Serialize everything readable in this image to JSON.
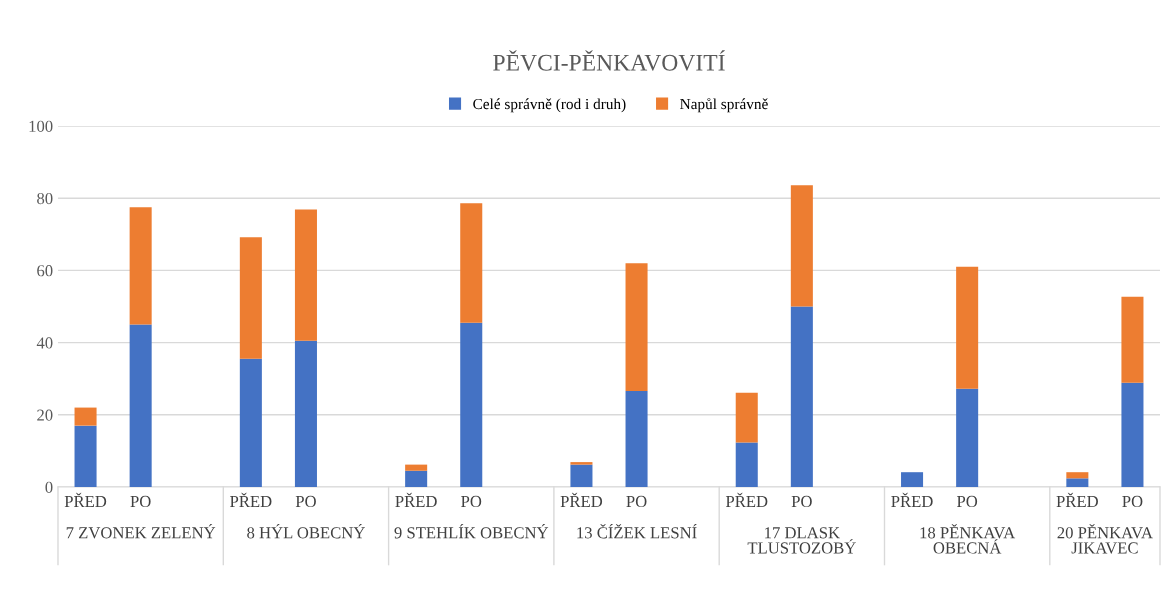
{
  "chart_data": {
    "type": "bar",
    "title": "PĚVCI-PĚNKAVOVITÍ",
    "stacked": true,
    "categories": [
      "PŘED",
      "PO",
      null,
      "PŘED",
      "PO",
      null,
      "PŘED",
      "PO",
      null,
      "PŘED",
      "PO",
      null,
      "PŘED",
      "PO",
      null,
      "PŘED",
      "PO",
      null,
      "PŘED",
      "PO"
    ],
    "series": [
      {
        "name": "Celé správně (rod i druh)",
        "color": "#4472c4",
        "values": [
          17,
          45,
          null,
          35.5,
          40.5,
          null,
          4.5,
          45.5,
          null,
          6.2,
          26.6,
          null,
          12.3,
          50,
          null,
          4.1,
          27.2,
          null,
          2.4,
          28.9
        ]
      },
      {
        "name": "Napůl správně",
        "color": "#ed7d31",
        "values": [
          5,
          32.5,
          null,
          33.7,
          36.4,
          null,
          1.7,
          33.1,
          null,
          0.7,
          35.4,
          null,
          13.8,
          33.6,
          null,
          0,
          33.8,
          null,
          1.7,
          23.8
        ]
      }
    ],
    "annotations": [
      "7 ZVONEK ZELENÝ",
      "8 HÝL OBECNÝ",
      "9 STEHLÍK OBECNÝ",
      "13 ČÍŽEK LESNÍ",
      "17 DLASK\nTLUSTOZOBÝ",
      "18 PĚNKAVA\nOBECNÁ",
      "20 PĚNKAVA\nJIKAVEC"
    ],
    "ylim": [
      0,
      100
    ],
    "yticks": [
      0,
      20,
      40,
      60,
      80,
      100
    ],
    "grid": "y",
    "legend": "top"
  }
}
